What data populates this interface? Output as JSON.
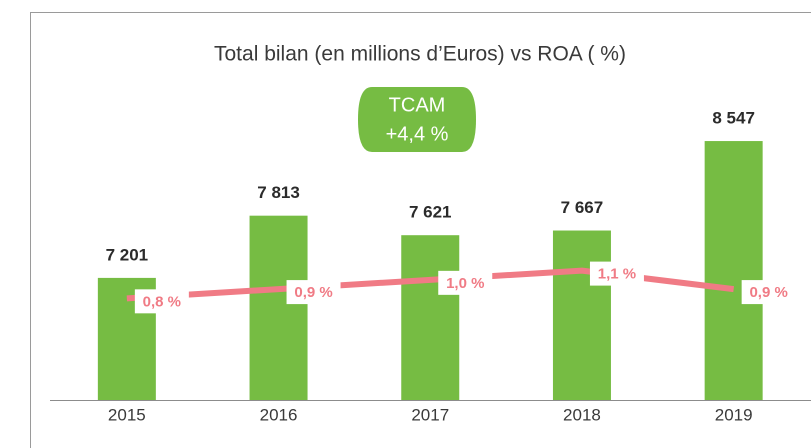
{
  "chart_data": {
    "type": "bar",
    "title": "Total bilan (en millions d’Euros) vs ROA ( %)",
    "annotation": [
      "TCAM",
      "+4,4 %"
    ],
    "categories": [
      "2015",
      "2016",
      "2017",
      "2018",
      "2019"
    ],
    "series": [
      {
        "type": "bar",
        "color": "#76bc43",
        "values": [
          7201,
          7813,
          7621,
          7667,
          8547
        ],
        "value_labels": [
          "7 201",
          "7 813",
          "7 621",
          "7 667",
          "8 547"
        ]
      },
      {
        "type": "line",
        "axis": "y2",
        "color": "#f07b85",
        "values": [
          0.8,
          0.9,
          1.0,
          1.1,
          0.9
        ],
        "value_labels": [
          "0,8 %",
          "0,9 %",
          "1,0 %",
          "1,1 %",
          "0,9 %"
        ]
      }
    ],
    "ylim": [
      6000,
      9000
    ],
    "y2lim": [
      -0.3,
      3.0
    ]
  }
}
